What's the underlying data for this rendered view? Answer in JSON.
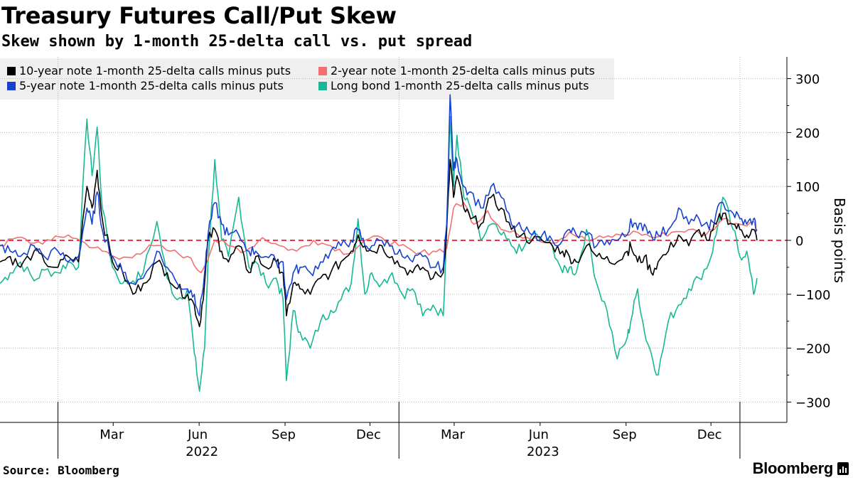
{
  "header": {
    "title": "Treasury Futures Call/Put Skew",
    "subtitle": "Skew shown by 1-month 25-delta call vs. put spread"
  },
  "footer": {
    "source": "Source: Bloomberg",
    "brand": "Bloomberg"
  },
  "colors": {
    "ten_year": "#000000",
    "two_year": "#f47070",
    "five_year": "#1642d0",
    "long_bond": "#18b894",
    "zero_line": "#e8354a",
    "grid": "#b5b5b5"
  },
  "chart_data": {
    "type": "line",
    "title": "Treasury Futures Call/Put Skew",
    "subtitle": "Skew shown by 1-month 25-delta call vs. put spread",
    "ylabel": "Basis points",
    "ylim": [
      -340,
      340
    ],
    "yticks": [
      300,
      200,
      100,
      0,
      -100,
      -200,
      -300
    ],
    "xlim": [
      2021.83,
      2024.08
    ],
    "xticks": [
      {
        "label": "Mar",
        "t": 2022.162
      },
      {
        "label": "Jun",
        "t": 2022.414
      },
      {
        "label": "Sep",
        "t": 2022.666
      },
      {
        "label": "Dec",
        "t": 2022.915
      },
      {
        "label": "Mar",
        "t": 2023.162
      },
      {
        "label": "Jun",
        "t": 2023.414
      },
      {
        "label": "Sep",
        "t": 2023.666
      },
      {
        "label": "Dec",
        "t": 2023.915
      }
    ],
    "year_labels": [
      {
        "label": "2022",
        "t": 2022.414
      },
      {
        "label": "2023",
        "t": 2023.414
      }
    ],
    "year_separators": [
      2022.0,
      2023.0,
      2024.0
    ],
    "series": [
      {
        "key": "long_bond",
        "name": "Long bond 1-month 25-delta calls minus puts",
        "x": [
          2021.83,
          2021.86,
          2021.89,
          2021.93,
          2021.96,
          2022.0,
          2022.03,
          2022.06,
          2022.085,
          2022.1,
          2022.115,
          2022.13,
          2022.16,
          2022.19,
          2022.22,
          2022.25,
          2022.29,
          2022.32,
          2022.35,
          2022.38,
          2022.4,
          2022.415,
          2022.43,
          2022.44,
          2022.46,
          2022.48,
          2022.5,
          2022.53,
          2022.56,
          2022.58,
          2022.61,
          2022.64,
          2022.66,
          2022.67,
          2022.69,
          2022.71,
          2022.74,
          2022.77,
          2022.8,
          2022.83,
          2022.86,
          2022.88,
          2022.9,
          2022.92,
          2022.95,
          2022.98,
          2023.01,
          2023.04,
          2023.07,
          2023.1,
          2023.13,
          2023.14,
          2023.15,
          2023.16,
          2023.17,
          2023.19,
          2023.21,
          2023.24,
          2023.27,
          2023.3,
          2023.33,
          2023.36,
          2023.39,
          2023.42,
          2023.45,
          2023.48,
          2023.5,
          2023.52,
          2023.55,
          2023.58,
          2023.61,
          2023.64,
          2023.67,
          2023.68,
          2023.7,
          2023.72,
          2023.74,
          2023.76,
          2023.79,
          2023.82,
          2023.85,
          2023.88,
          2023.91,
          2023.93,
          2023.95,
          2023.98,
          2024.0,
          2024.02,
          2024.04,
          2024.05
        ],
        "y": [
          -80,
          -60,
          -40,
          -75,
          -55,
          -60,
          -40,
          -50,
          225,
          120,
          210,
          60,
          -50,
          -80,
          -75,
          -60,
          35,
          -70,
          -110,
          -90,
          -210,
          -280,
          -200,
          -40,
          150,
          0,
          -30,
          80,
          -50,
          -40,
          -80,
          -70,
          -110,
          -260,
          -130,
          -170,
          -200,
          -150,
          -130,
          -110,
          -80,
          40,
          -100,
          -60,
          -80,
          -60,
          -100,
          -90,
          -140,
          -120,
          -140,
          25,
          230,
          100,
          195,
          80,
          60,
          0,
          30,
          10,
          -10,
          -20,
          10,
          0,
          -10,
          -60,
          -50,
          -60,
          20,
          -80,
          -130,
          -220,
          -180,
          -150,
          -90,
          -170,
          -210,
          -250,
          -150,
          -120,
          -90,
          -70,
          -40,
          10,
          80,
          20,
          -30,
          -20,
          -100,
          -70
        ]
      },
      {
        "key": "two_year",
        "name": "2-year note 1-month 25-delta calls minus puts",
        "x": [
          2021.83,
          2021.88,
          2021.93,
          2021.98,
          2022.03,
          2022.08,
          2022.13,
          2022.18,
          2022.23,
          2022.28,
          2022.33,
          2022.38,
          2022.42,
          2022.46,
          2022.5,
          2022.55,
          2022.6,
          2022.65,
          2022.7,
          2022.75,
          2022.8,
          2022.85,
          2022.9,
          2022.95,
          2023.0,
          2023.05,
          2023.1,
          2023.14,
          2023.16,
          2023.19,
          2023.22,
          2023.26,
          2023.3,
          2023.35,
          2023.4,
          2023.45,
          2023.5,
          2023.55,
          2023.6,
          2023.65,
          2023.7,
          2023.75,
          2023.8,
          2023.85,
          2023.9,
          2023.95,
          2024.0,
          2024.04,
          2024.05
        ],
        "y": [
          -10,
          5,
          -5,
          0,
          10,
          -5,
          -20,
          -35,
          -25,
          -10,
          -20,
          -30,
          -60,
          0,
          -10,
          -20,
          5,
          -10,
          -20,
          0,
          -10,
          -25,
          0,
          5,
          -10,
          -25,
          -20,
          -15,
          60,
          70,
          30,
          55,
          20,
          10,
          5,
          -5,
          15,
          0,
          5,
          10,
          15,
          5,
          15,
          20,
          10,
          40,
          30,
          35,
          20
        ]
      },
      {
        "key": "ten_year",
        "name": "10-year note 1-month 25-delta calls minus puts",
        "x": [
          2021.83,
          2021.86,
          2021.89,
          2021.93,
          2021.96,
          2022.0,
          2022.03,
          2022.06,
          2022.085,
          2022.1,
          2022.115,
          2022.13,
          2022.16,
          2022.19,
          2022.22,
          2022.25,
          2022.29,
          2022.32,
          2022.35,
          2022.38,
          2022.4,
          2022.415,
          2022.43,
          2022.44,
          2022.46,
          2022.48,
          2022.5,
          2022.53,
          2022.56,
          2022.58,
          2022.61,
          2022.64,
          2022.66,
          2022.67,
          2022.69,
          2022.71,
          2022.74,
          2022.77,
          2022.8,
          2022.83,
          2022.86,
          2022.88,
          2022.9,
          2022.92,
          2022.95,
          2022.98,
          2023.01,
          2023.04,
          2023.07,
          2023.1,
          2023.13,
          2023.14,
          2023.15,
          2023.16,
          2023.17,
          2023.19,
          2023.21,
          2023.24,
          2023.27,
          2023.3,
          2023.33,
          2023.36,
          2023.39,
          2023.42,
          2023.45,
          2023.48,
          2023.5,
          2023.52,
          2023.55,
          2023.58,
          2023.61,
          2023.64,
          2023.67,
          2023.68,
          2023.7,
          2023.72,
          2023.74,
          2023.76,
          2023.79,
          2023.82,
          2023.85,
          2023.88,
          2023.91,
          2023.93,
          2023.95,
          2023.98,
          2024.0,
          2024.02,
          2024.04,
          2024.05
        ],
        "y": [
          -40,
          -30,
          -50,
          -20,
          -40,
          -50,
          -30,
          -40,
          100,
          60,
          130,
          40,
          -40,
          -60,
          -100,
          -80,
          -40,
          -60,
          -90,
          -100,
          -120,
          -160,
          -80,
          0,
          20,
          -20,
          -40,
          -10,
          -60,
          -30,
          -50,
          -40,
          -60,
          -140,
          -80,
          -90,
          -100,
          -70,
          -60,
          -40,
          -20,
          10,
          -10,
          -20,
          -10,
          -30,
          -50,
          -60,
          -50,
          -70,
          -60,
          20,
          150,
          80,
          120,
          60,
          40,
          30,
          80,
          60,
          20,
          10,
          0,
          0,
          -10,
          -20,
          -30,
          -40,
          -10,
          -30,
          -30,
          -40,
          -20,
          -10,
          -40,
          -30,
          -60,
          -40,
          -20,
          10,
          -10,
          20,
          0,
          30,
          50,
          30,
          20,
          10,
          20,
          0
        ]
      },
      {
        "key": "five_year",
        "name": "5-year note 1-month 25-delta calls minus puts",
        "x": [
          2021.83,
          2021.86,
          2021.89,
          2021.93,
          2021.96,
          2022.0,
          2022.03,
          2022.06,
          2022.085,
          2022.1,
          2022.115,
          2022.13,
          2022.16,
          2022.19,
          2022.22,
          2022.25,
          2022.29,
          2022.32,
          2022.35,
          2022.38,
          2022.4,
          2022.415,
          2022.43,
          2022.44,
          2022.46,
          2022.48,
          2022.5,
          2022.53,
          2022.56,
          2022.58,
          2022.61,
          2022.64,
          2022.66,
          2022.67,
          2022.69,
          2022.71,
          2022.74,
          2022.77,
          2022.8,
          2022.83,
          2022.86,
          2022.88,
          2022.9,
          2022.92,
          2022.95,
          2022.98,
          2023.01,
          2023.04,
          2023.07,
          2023.1,
          2023.13,
          2023.14,
          2023.15,
          2023.16,
          2023.17,
          2023.19,
          2023.21,
          2023.24,
          2023.27,
          2023.3,
          2023.33,
          2023.36,
          2023.39,
          2023.42,
          2023.45,
          2023.48,
          2023.5,
          2023.52,
          2023.55,
          2023.58,
          2023.61,
          2023.64,
          2023.67,
          2023.68,
          2023.7,
          2023.72,
          2023.74,
          2023.76,
          2023.79,
          2023.82,
          2023.85,
          2023.88,
          2023.91,
          2023.93,
          2023.95,
          2023.98,
          2024.0,
          2024.02,
          2024.04,
          2024.05
        ],
        "y": [
          -10,
          -20,
          -30,
          -10,
          -30,
          -20,
          -40,
          -30,
          60,
          30,
          90,
          20,
          -30,
          -60,
          -80,
          -70,
          -20,
          -50,
          -80,
          -90,
          -100,
          -140,
          -60,
          10,
          70,
          30,
          10,
          10,
          -20,
          -20,
          -30,
          -40,
          -40,
          -110,
          -60,
          -50,
          -60,
          -40,
          -20,
          -10,
          0,
          20,
          -10,
          -10,
          0,
          -10,
          -30,
          -40,
          -30,
          -50,
          -50,
          30,
          270,
          130,
          150,
          100,
          90,
          60,
          100,
          80,
          30,
          20,
          10,
          10,
          0,
          0,
          20,
          10,
          10,
          -10,
          0,
          0,
          10,
          40,
          20,
          30,
          10,
          10,
          20,
          60,
          30,
          40,
          20,
          50,
          70,
          50,
          40,
          30,
          40,
          20
        ]
      }
    ]
  }
}
